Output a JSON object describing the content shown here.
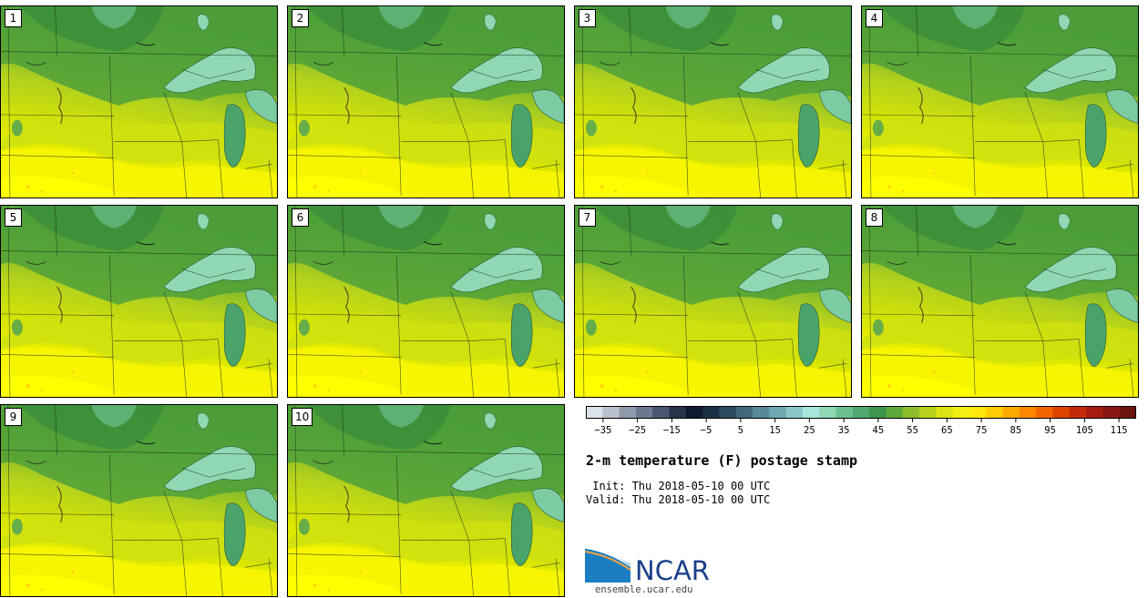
{
  "panels": [
    "1",
    "2",
    "3",
    "4",
    "5",
    "6",
    "7",
    "8",
    "9",
    "10"
  ],
  "colorbar": {
    "ticks": [
      "-35",
      "-25",
      "-15",
      "-5",
      "5",
      "15",
      "25",
      "35",
      "45",
      "55",
      "65",
      "75",
      "85",
      "95",
      "105",
      "115"
    ],
    "min": -40,
    "max": 120,
    "colors": [
      "#dde3ea",
      "#b8c0cb",
      "#8f9aab",
      "#6b7890",
      "#48576f",
      "#26344a",
      "#0e1a2e",
      "#1a2f44",
      "#2b4b5e",
      "#3f6a7c",
      "#568a98",
      "#6fa9b2",
      "#8ac8c8",
      "#a6e6db",
      "#8fd8b3",
      "#6cc08f",
      "#4fa86d",
      "#3c944d",
      "#5fa83b",
      "#8dbd2a",
      "#b8d11d",
      "#dbe414",
      "#f4ef12",
      "#ffe80c",
      "#ffcc05",
      "#ffaa00",
      "#ff8800",
      "#f26400",
      "#de4300",
      "#c52a08",
      "#a81c10",
      "#8a170f",
      "#6b140c"
    ]
  },
  "title": "2-m temperature (F) postage stamp",
  "init": " Init: Thu 2018-05-10 00 UTC",
  "valid": "Valid: Thu 2018-05-10 00 UTC",
  "logo_word": "NCAR",
  "url": "ensemble.ucar.edu"
}
